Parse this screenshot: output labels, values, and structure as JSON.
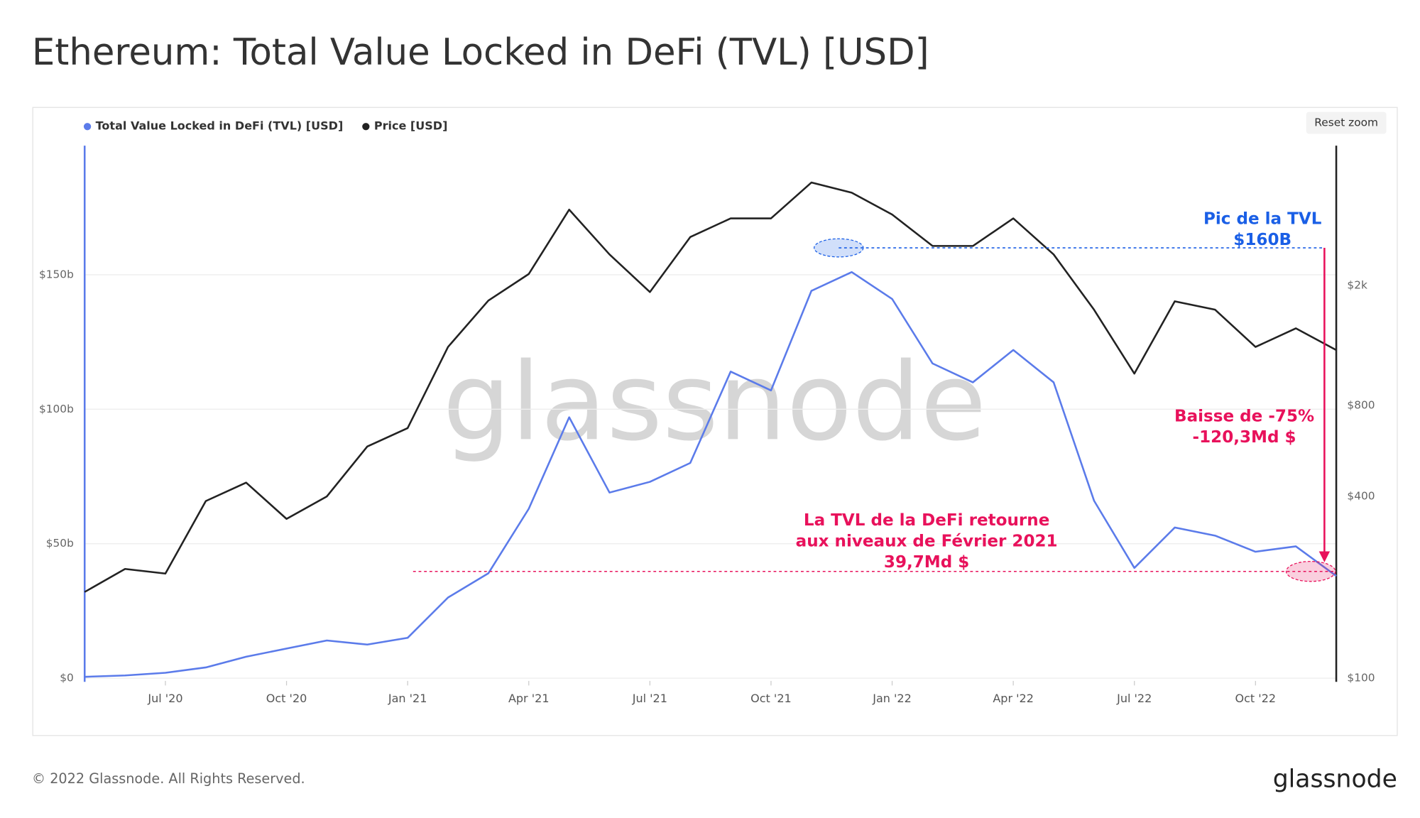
{
  "title": "Ethereum: Total Value Locked in DeFi (TVL) [USD]",
  "reset_button": "Reset zoom",
  "watermark": "glassnode",
  "footer": {
    "copyright": "© 2022 Glassnode. All Rights Reserved.",
    "logo": "glassnode"
  },
  "chart_data": {
    "type": "line",
    "x": [
      "2020-05",
      "2020-06",
      "2020-07",
      "2020-08",
      "2020-09",
      "2020-10",
      "2020-11",
      "2020-12",
      "2021-01",
      "2021-02",
      "2021-03",
      "2021-04",
      "2021-05",
      "2021-06",
      "2021-07",
      "2021-08",
      "2021-09",
      "2021-10",
      "2021-11",
      "2021-12",
      "2022-01",
      "2022-02",
      "2022-03",
      "2022-04",
      "2022-05",
      "2022-06",
      "2022-07",
      "2022-08",
      "2022-09",
      "2022-10",
      "2022-11",
      "2022-12"
    ],
    "xlim": [
      "2020-05",
      "2022-12"
    ],
    "xticks": [
      {
        "value": "2020-07",
        "label": "Jul '20"
      },
      {
        "value": "2020-10",
        "label": "Oct '20"
      },
      {
        "value": "2021-01",
        "label": "Jan '21"
      },
      {
        "value": "2021-04",
        "label": "Apr '21"
      },
      {
        "value": "2021-07",
        "label": "Jul '21"
      },
      {
        "value": "2021-10",
        "label": "Oct '21"
      },
      {
        "value": "2022-01",
        "label": "Jan '22"
      },
      {
        "value": "2022-04",
        "label": "Apr '22"
      },
      {
        "value": "2022-07",
        "label": "Jul '22"
      },
      {
        "value": "2022-10",
        "label": "Oct '22"
      }
    ],
    "ylim": [
      0,
      198
    ],
    "yticks": [
      {
        "value": 0,
        "label": "$0"
      },
      {
        "value": 50,
        "label": "$50b"
      },
      {
        "value": 100,
        "label": "$100b"
      },
      {
        "value": 150,
        "label": "$150b"
      }
    ],
    "y2lim": [
      100,
      5800
    ],
    "y2log": true,
    "y2ticks": [
      {
        "value": 100,
        "label": "$100"
      },
      {
        "value": 400,
        "label": "$400"
      },
      {
        "value": 800,
        "label": "$800"
      },
      {
        "value": 2000,
        "label": "$2k"
      }
    ],
    "grid": true,
    "series": [
      {
        "name": "Total Value Locked in DeFi (TVL) [USD]",
        "color": "#5b7bea",
        "values": [
          0.5,
          1,
          2,
          4,
          8,
          11,
          14,
          12.5,
          15,
          30,
          39,
          63,
          97,
          69,
          73,
          80,
          114,
          107,
          144,
          151,
          141,
          117,
          110,
          122,
          110,
          66,
          41,
          56,
          53,
          47,
          49,
          38
        ]
      },
      {
        "name": "Price [USD]",
        "color": "#222222",
        "axis": "y2",
        "values": [
          193,
          230,
          222,
          386,
          444,
          337,
          400,
          585,
          673,
          1250,
          1780,
          2180,
          3560,
          2530,
          1900,
          2890,
          3330,
          3330,
          4380,
          4050,
          3430,
          2700,
          2700,
          3330,
          2530,
          1660,
          1020,
          1770,
          1660,
          1250,
          1440,
          1220
        ]
      }
    ],
    "reference_lines": [
      {
        "value": 160,
        "from": "2021-11",
        "color": "#1a5fe6",
        "label": [
          "Pic de la TVL",
          "$160B"
        ]
      },
      {
        "value": 39.7,
        "from": "2021-01",
        "color": "#e8115b",
        "label": [
          "La TVL de la DeFi retourne",
          "aux niveaux de Février 2021",
          "39,7Md $"
        ]
      }
    ],
    "drop_annotation": {
      "color": "#e8115b",
      "label": [
        "Baisse de -75%",
        "-120,3Md $"
      ]
    }
  }
}
